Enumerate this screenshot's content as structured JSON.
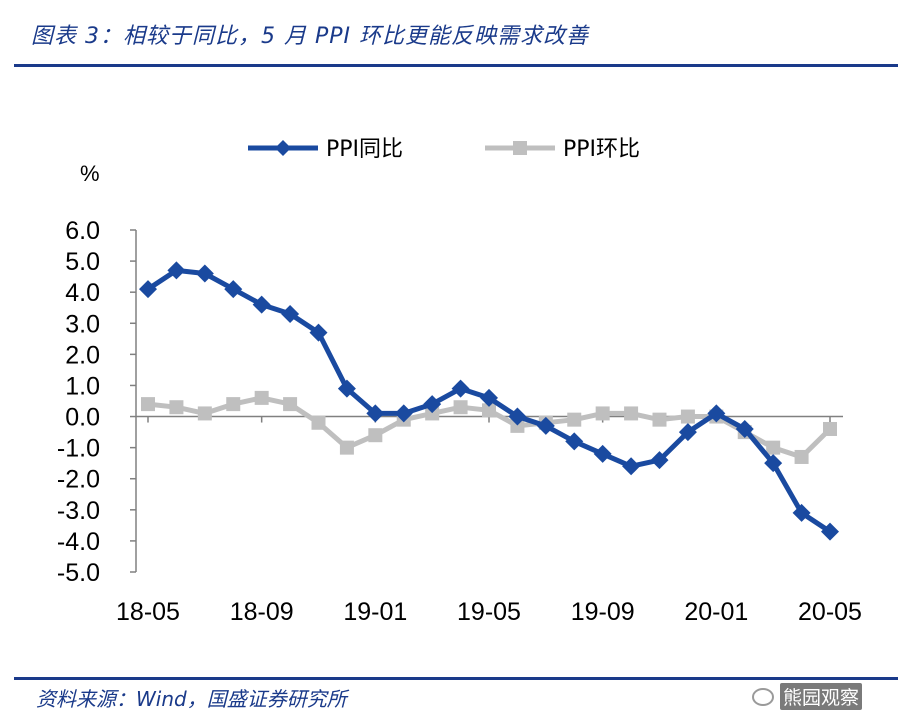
{
  "header": {
    "title": "图表 3：相较于同比，5 月 PPI 环比更能反映需求改善"
  },
  "footer": {
    "source": "资料来源：Wind，国盛证券研究所",
    "watermark": "熊园观察"
  },
  "chart_data": {
    "type": "line",
    "unit": "%",
    "ylim": [
      -5,
      6
    ],
    "yticks": [
      "6.0",
      "5.0",
      "4.0",
      "3.0",
      "2.0",
      "1.0",
      "0.0",
      "-1.0",
      "-2.0",
      "-3.0",
      "-4.0",
      "-5.0"
    ],
    "x_tick_labels": [
      "18-05",
      "18-09",
      "19-01",
      "19-05",
      "19-09",
      "20-01",
      "20-05"
    ],
    "x": [
      "18-05",
      "18-06",
      "18-07",
      "18-08",
      "18-09",
      "18-10",
      "18-11",
      "18-12",
      "19-01",
      "19-02",
      "19-03",
      "19-04",
      "19-05",
      "19-06",
      "19-07",
      "19-08",
      "19-09",
      "19-10",
      "19-11",
      "19-12",
      "20-01",
      "20-02",
      "20-03",
      "20-04",
      "20-05"
    ],
    "legend_position": "top",
    "grid": false,
    "series": [
      {
        "name": "PPI同比",
        "color": "#1a4aa0",
        "marker": "diamond",
        "values": [
          4.1,
          4.7,
          4.6,
          4.1,
          3.6,
          3.3,
          2.7,
          0.9,
          0.1,
          0.1,
          0.4,
          0.9,
          0.6,
          0.0,
          -0.3,
          -0.8,
          -1.2,
          -1.6,
          -1.4,
          -0.5,
          0.1,
          -0.4,
          -1.5,
          -3.1,
          -3.7
        ]
      },
      {
        "name": "PPI环比",
        "color": "#bfbfbf",
        "marker": "square",
        "values": [
          0.4,
          0.3,
          0.1,
          0.4,
          0.6,
          0.4,
          -0.2,
          -1.0,
          -0.6,
          -0.1,
          0.1,
          0.3,
          0.2,
          -0.3,
          -0.2,
          -0.1,
          0.1,
          0.1,
          -0.1,
          0.0,
          0.0,
          -0.5,
          -1.0,
          -1.3,
          -0.4
        ]
      }
    ]
  }
}
